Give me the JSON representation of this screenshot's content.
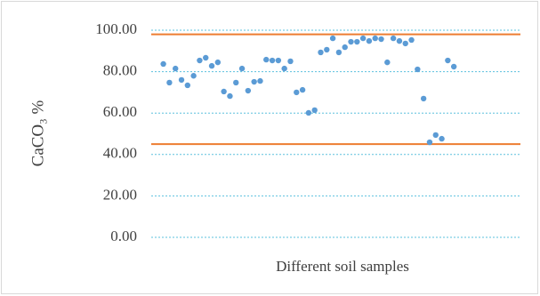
{
  "chart_data": {
    "type": "scatter",
    "x_label": "Different soil samples",
    "y_label": "CaCO₃ %",
    "x": [
      1,
      2,
      3,
      4,
      5,
      6,
      7,
      8,
      9,
      10,
      11,
      12,
      13,
      14,
      15,
      16,
      17,
      18,
      19,
      20,
      21,
      22,
      23,
      24,
      25,
      26,
      27,
      28,
      29,
      30,
      31,
      32,
      33,
      34,
      35,
      36,
      37,
      38,
      39,
      40,
      41,
      42,
      43,
      44,
      45,
      46,
      47,
      48,
      49
    ],
    "series": [
      {
        "color": "#5b9bd5",
        "values": [
          83.7,
          74.7,
          81.5,
          76,
          73.4,
          78,
          85.4,
          86.7,
          82.8,
          84.5,
          70.4,
          68.2,
          74.7,
          81.5,
          70.8,
          75.1,
          75.5,
          85.8,
          85.4,
          85.4,
          81.5,
          85,
          70,
          71.2,
          60.1,
          61.4,
          89.3,
          90.6,
          96.1,
          89.3,
          91.8,
          94.4,
          94.4,
          96.1,
          94.8,
          96.1,
          95.7,
          84.5,
          96.1,
          94.8,
          93.6,
          95.3,
          81.1,
          67,
          45.9,
          49.4,
          47.6,
          85.4,
          82.4
        ]
      }
    ],
    "hlines": {
      "color": "#ed7d31",
      "values": [
        98,
        45
      ]
    },
    "xlim": [
      -1,
      60
    ],
    "ylim": [
      0,
      100
    ],
    "yticks": [
      {
        "value": 0,
        "label": "0.00"
      },
      {
        "value": 20,
        "label": "20.00"
      },
      {
        "value": 40,
        "label": "40.00"
      },
      {
        "value": 60,
        "label": "60.00"
      },
      {
        "value": 80,
        "label": "80.00"
      },
      {
        "value": 100,
        "label": "100.00"
      }
    ],
    "grid": true
  }
}
